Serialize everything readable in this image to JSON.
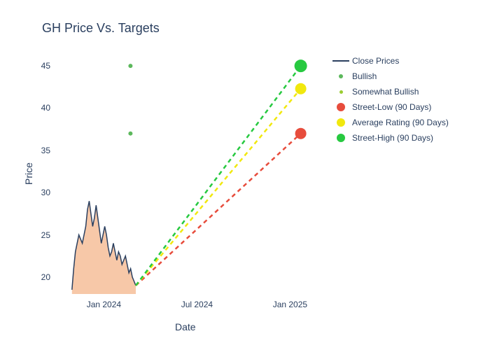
{
  "chart": {
    "type": "line+scatter+area",
    "title": "GH Price Vs. Targets",
    "title_fontsize": 18,
    "title_color": "#2a3f5f",
    "xlabel": "Date",
    "ylabel": "Price",
    "label_fontsize": 14,
    "label_color": "#2a3f5f",
    "tick_fontsize": 12,
    "tick_color": "#2a3f5f",
    "background_color": "#ffffff",
    "grid_color": "#ffffff",
    "ylim": [
      18,
      47
    ],
    "yticks": [
      20,
      25,
      30,
      35,
      40,
      45
    ],
    "xlim_dates": [
      "2023-10-01",
      "2025-03-01"
    ],
    "xticks": [
      {
        "label": "Jan 2024",
        "pos": 0.18
      },
      {
        "label": "Jul 2024",
        "pos": 0.53
      },
      {
        "label": "Jan 2025",
        "pos": 0.88
      }
    ],
    "close_prices": {
      "color": "#2a3f5f",
      "fill_color": "#f4b183",
      "fill_opacity": 0.7,
      "line_width": 1.5,
      "x_range": [
        0.06,
        0.3
      ],
      "points": [
        18.5,
        21,
        23,
        24,
        25,
        24.5,
        24,
        25,
        26,
        28,
        29,
        27.5,
        26,
        27,
        28.5,
        27,
        25.5,
        24,
        25,
        26,
        25,
        23.5,
        22.5,
        23,
        24,
        23,
        22,
        23,
        22.5,
        21.5,
        22,
        22.5,
        21.5,
        20.5,
        21,
        20,
        19.5,
        19
      ]
    },
    "bullish_dots": {
      "color": "#5cb85c",
      "size": 6,
      "points": [
        {
          "x": 0.28,
          "y": 45
        },
        {
          "x": 0.28,
          "y": 37
        }
      ]
    },
    "target_lines": {
      "start_x": 0.3,
      "start_y": 19,
      "dash": "6,5",
      "line_width": 2.5,
      "targets": [
        {
          "name": "street_low",
          "end_x": 0.92,
          "end_y": 37,
          "color": "#e74c3c",
          "dot_size": 16
        },
        {
          "name": "average",
          "end_x": 0.92,
          "end_y": 42.3,
          "color": "#f1e80e",
          "dot_size": 16
        },
        {
          "name": "street_high",
          "end_x": 0.92,
          "end_y": 45,
          "color": "#27c940",
          "dot_size": 18
        }
      ]
    },
    "legend": {
      "items": [
        {
          "label": "Close Prices",
          "type": "line",
          "color": "#2a3f5f"
        },
        {
          "label": "Bullish",
          "type": "dot",
          "color": "#5cb85c",
          "size": 6
        },
        {
          "label": "Somewhat Bullish",
          "type": "dot",
          "color": "#9acd32",
          "size": 5
        },
        {
          "label": "Street-Low (90 Days)",
          "type": "dot",
          "color": "#e74c3c",
          "size": 12
        },
        {
          "label": "Average Rating (90 Days)",
          "type": "dot",
          "color": "#f1e80e",
          "size": 12
        },
        {
          "label": "Street-High (90 Days)",
          "type": "dot",
          "color": "#27c940",
          "size": 12
        }
      ]
    }
  }
}
